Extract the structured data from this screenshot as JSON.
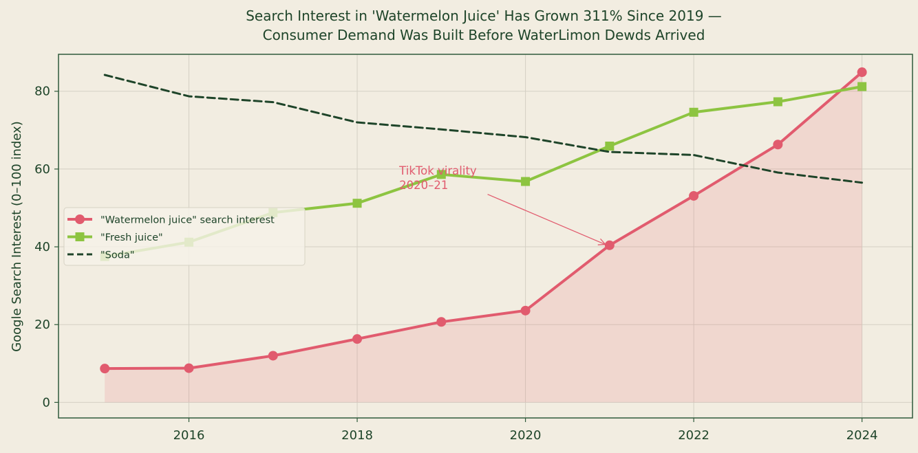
{
  "chart_data": {
    "type": "line",
    "title": "Search Interest in 'Watermelon Juice' Has Grown 311% Since 2019 —",
    "subtitle": "Consumer Demand Was Built Before WaterLimon Dewds Arrived",
    "xlabel": "",
    "ylabel": "Google Search Interest (0–100 index)",
    "x": [
      2015,
      2016,
      2017,
      2018,
      2019,
      2020,
      2021,
      2022,
      2023,
      2024
    ],
    "xlim": [
      2014.45,
      2024.6
    ],
    "ylim": [
      -4,
      89.5
    ],
    "xticks": [
      "2016",
      "2018",
      "2020",
      "2022",
      "2024"
    ],
    "yticks": [
      "0",
      "20",
      "40",
      "60",
      "80"
    ],
    "grid": true,
    "legend_position": "center-left",
    "series": [
      {
        "name": "\"Watermelon juice\" search interest",
        "values": [
          8.7,
          8.8,
          12.0,
          16.3,
          20.7,
          23.6,
          40.4,
          53.1,
          66.3,
          84.9
        ],
        "color": "#e15b6e",
        "marker": "circle",
        "linestyle": "solid",
        "fill": true
      },
      {
        "name": "\"Fresh juice\"",
        "values": [
          37.5,
          41.2,
          48.8,
          51.2,
          58.6,
          56.8,
          65.9,
          74.6,
          77.3,
          81.2
        ],
        "color": "#8dc441",
        "marker": "square",
        "linestyle": "solid",
        "fill": false
      },
      {
        "name": "\"Soda\"",
        "values": [
          84.2,
          78.7,
          77.2,
          72.0,
          70.2,
          68.2,
          64.4,
          63.6,
          59.1,
          56.5
        ],
        "color": "#1e4429",
        "marker": "none",
        "linestyle": "dashed",
        "fill": false
      }
    ],
    "annotations": [
      {
        "text_lines": [
          "TikTok virality",
          "2020–21"
        ],
        "text_x": 2018.5,
        "text_y": 58.6,
        "arrow_from": [
          2019.55,
          53.5
        ],
        "arrow_to": [
          2020.95,
          40.6
        ],
        "color": "#e15b6e"
      }
    ]
  }
}
